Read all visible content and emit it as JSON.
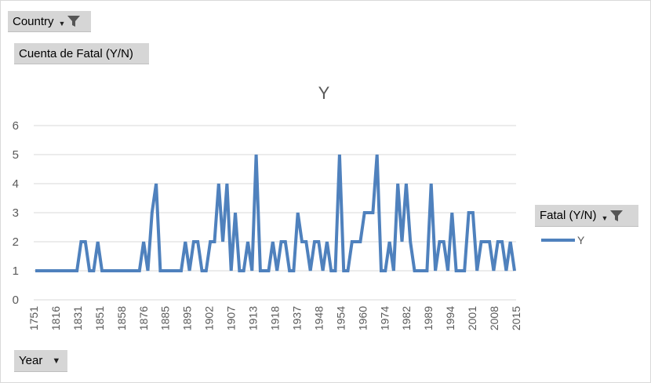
{
  "pivot": {
    "country_label": "Country",
    "measure_label": "Cuenta de Fatal (Y/N)",
    "year_label": "Year",
    "legend_field_label": "Fatal (Y/N)"
  },
  "colors": {
    "series": "#4f81bd",
    "grid": "#d9d9d9",
    "axis_text": "#595959",
    "button_bg": "#d6d6d6"
  },
  "icons": {
    "filter": "funnel-icon",
    "dropdown": "chevron-down-icon"
  },
  "chart_data": {
    "type": "line",
    "title": "Y",
    "xlabel": "",
    "ylabel": "",
    "ylim": [
      0,
      6
    ],
    "y_ticks": [
      0,
      1,
      2,
      3,
      4,
      5,
      6
    ],
    "grid": true,
    "legend_position": "right",
    "x_tick_labels": [
      "1751",
      "1816",
      "1831",
      "1851",
      "1858",
      "1876",
      "1885",
      "1895",
      "1902",
      "1907",
      "1913",
      "1918",
      "1937",
      "1948",
      "1954",
      "1960",
      "1974",
      "1982",
      "1989",
      "1994",
      "2001",
      "2008",
      "2015"
    ],
    "series": [
      {
        "name": "Y",
        "values": [
          1,
          1,
          1,
          1,
          1,
          1,
          1,
          1,
          1,
          1,
          1,
          2,
          2,
          1,
          1,
          2,
          1,
          1,
          1,
          1,
          1,
          1,
          1,
          1,
          1,
          1,
          2,
          1,
          3,
          4,
          1,
          1,
          1,
          1,
          1,
          1,
          2,
          1,
          2,
          2,
          1,
          1,
          2,
          2,
          4,
          2,
          4,
          1,
          3,
          1,
          1,
          2,
          1,
          5,
          1,
          1,
          1,
          2,
          1,
          2,
          2,
          1,
          1,
          3,
          2,
          2,
          1,
          2,
          2,
          1,
          2,
          1,
          1,
          5,
          1,
          1,
          2,
          2,
          2,
          3,
          3,
          3,
          5,
          1,
          1,
          2,
          1,
          4,
          2,
          4,
          2,
          1,
          1,
          1,
          1,
          4,
          1,
          2,
          2,
          1,
          3,
          1,
          1,
          1,
          3,
          3,
          1,
          2,
          2,
          2,
          1,
          2,
          2,
          1,
          2,
          1
        ]
      }
    ]
  }
}
